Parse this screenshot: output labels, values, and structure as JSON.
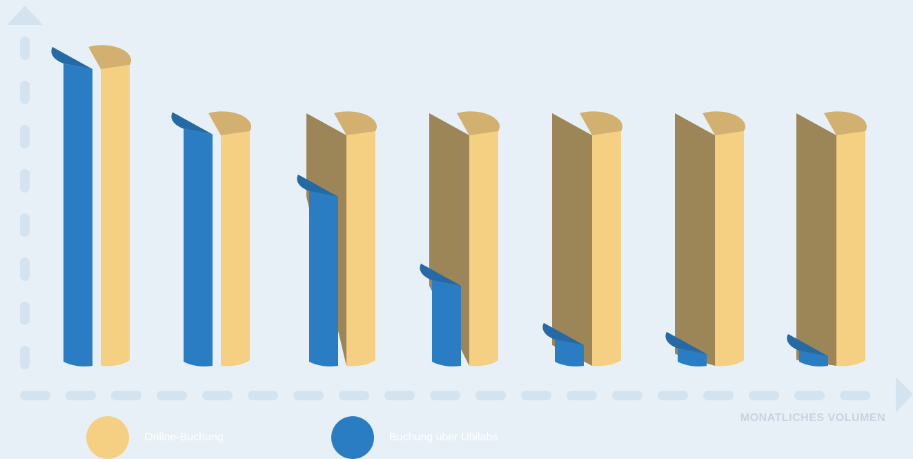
{
  "chart_data": {
    "type": "bar",
    "xlabel": "MONATLICHES VOLUMEN",
    "ylabel": "",
    "categories": [
      "",
      "",
      "",
      "",
      "",
      "",
      ""
    ],
    "ylim": [
      0,
      100
    ],
    "series": [
      {
        "name": "Online-Buchung",
        "color": "#f5d083",
        "values": [
          100,
          100,
          100,
          100,
          100,
          100,
          100
        ]
      },
      {
        "name": "Buchung über Ubilabs",
        "color": "#2a7dc2",
        "values": [
          100,
          78,
          57,
          27,
          7,
          4,
          2
        ]
      }
    ],
    "grid": false,
    "legend_position": "bottom-left"
  },
  "colors": {
    "background": "#e8f0f7",
    "axis": "#d4e3f0",
    "online_side": "#f5d083",
    "online_cut": "#9c8556",
    "online_top": "#d2b06f",
    "ubilabs_side": "#2a7dc2",
    "ubilabs_top": "#266aa5",
    "axis_label": "#c7d3e0"
  },
  "icons": {
    "y_axis": "arrow-up-icon",
    "x_axis": "arrow-right-icon"
  }
}
